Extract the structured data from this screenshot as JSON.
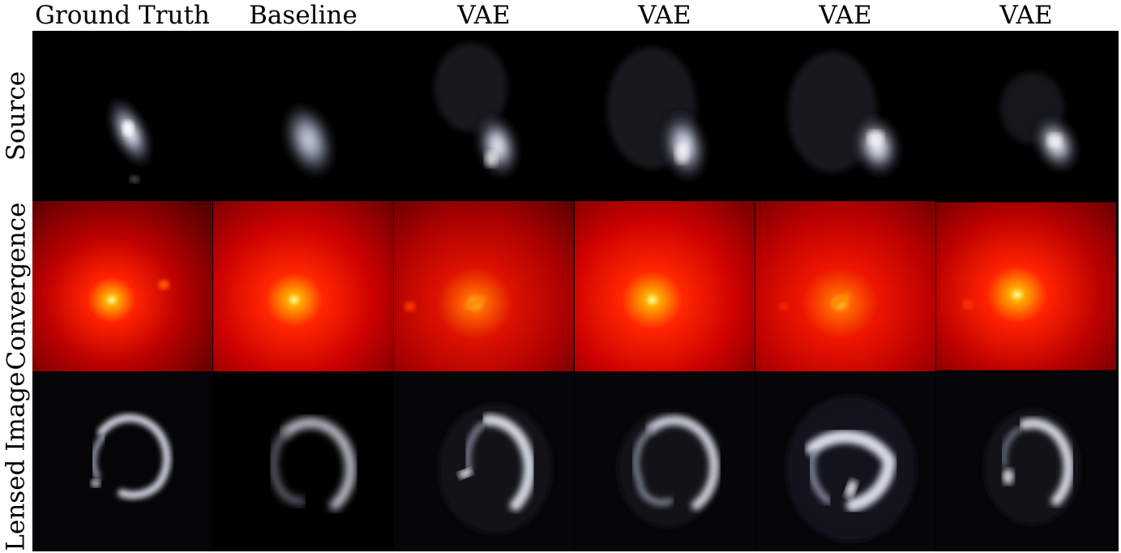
{
  "figure": {
    "columns": [
      {
        "id": "gt",
        "title": "Ground Truth"
      },
      {
        "id": "baseline",
        "title": "Baseline"
      },
      {
        "id": "vae1",
        "title": "VAE"
      },
      {
        "id": "vae2",
        "title": "VAE"
      },
      {
        "id": "vae3",
        "title": "VAE"
      },
      {
        "id": "vae4",
        "title": "VAE"
      }
    ],
    "rows": [
      {
        "id": "source",
        "label": "Source",
        "colormap": "bone"
      },
      {
        "id": "convergence",
        "label": "Convergence",
        "colormap": "hot"
      },
      {
        "id": "lensed",
        "label": "Lensed Image",
        "colormap": "bone"
      }
    ]
  }
}
